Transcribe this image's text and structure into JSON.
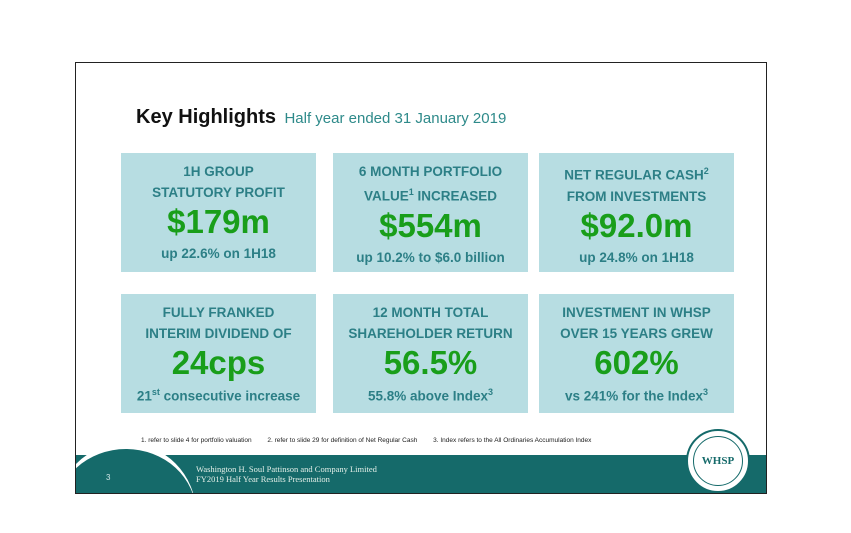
{
  "header": {
    "title": "Key Highlights",
    "subtitle": "Half year ended 31 January 2019"
  },
  "cards": [
    {
      "label": "1H GROUP\nSTATUTORY PROFIT",
      "value": "$179m",
      "note": "up 22.6% on 1H18"
    },
    {
      "label_a": "6 MONTH PORTFOLIO",
      "label_b": "VALUE",
      "label_sup": "1",
      "label_c": " INCREASED",
      "value": "$554m",
      "note": "up 10.2% to $6.0 billion"
    },
    {
      "label_a": "NET REGULAR CASH",
      "label_sup": "2",
      "label_b": "FROM INVESTMENTS",
      "value": "$92.0m",
      "note": "up 24.8% on 1H18"
    },
    {
      "label": "FULLY FRANKED\nINTERIM DIVIDEND OF",
      "value": "24cps",
      "note_a": "21",
      "note_sup": "st",
      "note_b": " consecutive increase"
    },
    {
      "label": "12 MONTH TOTAL\nSHAREHOLDER RETURN",
      "value": "56.5%",
      "note_a": "55.8% above Index",
      "note_sup": "3"
    },
    {
      "label": "INVESTMENT IN WHSP\nOVER 15 YEARS GREW",
      "value": "602%",
      "note_a": "vs 241% for the Index",
      "note_sup": "3"
    }
  ],
  "footnotes": [
    "1.    refer to slide 4 for portfolio valuation",
    "2.  refer to slide 29 for definition of Net Regular Cash",
    "3.  Index refers to the All Ordinaries Accumulation Index"
  ],
  "footer": {
    "page": "3",
    "line1": "Washington H. Soul Pattinson and Company Limited",
    "line2": "FY2019 Half Year Results Presentation",
    "logo": "WHSP"
  },
  "colors": {
    "card_bg": "#b7dde2",
    "label": "#2c7f86",
    "value": "#199e1a",
    "footer": "#156a6a"
  }
}
